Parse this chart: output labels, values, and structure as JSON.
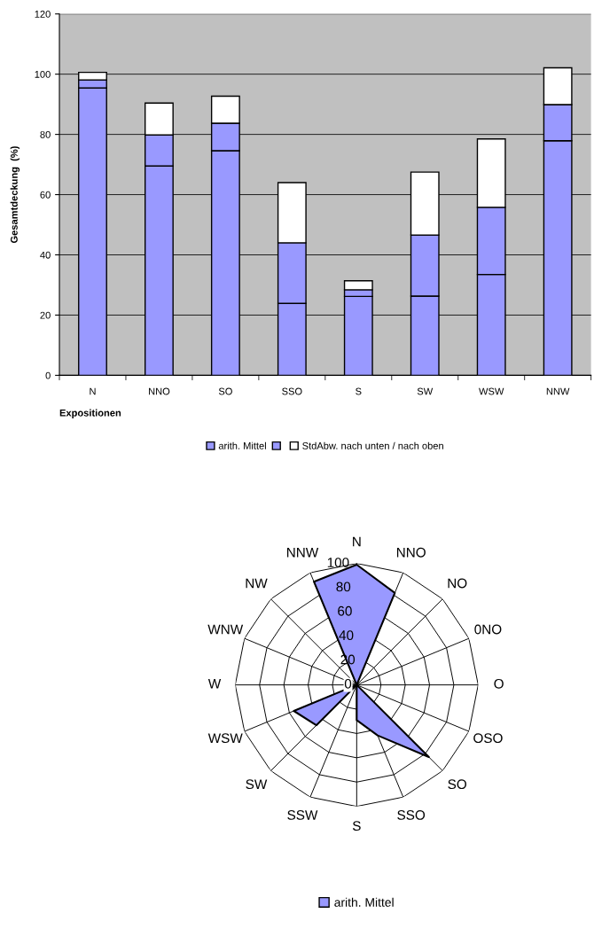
{
  "chart_data": [
    {
      "type": "bar",
      "stacked": true,
      "xlabel": "Expositionen",
      "ylabel": "Gesamtdeckung  (%)",
      "categories": [
        "N",
        "NNO",
        "SO",
        "SSO",
        "S",
        "SW",
        "WSW",
        "NNW"
      ],
      "series": [
        {
          "name": "arith. Mittel",
          "color": "#9999ff",
          "values": [
            95.4,
            69.5,
            74.6,
            23.9,
            26.2,
            26.3,
            33.5,
            77.9
          ]
        },
        {
          "name": null,
          "color": "#9999ff",
          "values": [
            2.7,
            10.3,
            9.1,
            20.1,
            2.2,
            20.3,
            22.3,
            12.0
          ]
        },
        {
          "name": "StdAbw. nach unten / nach oben",
          "color": "#ffffff",
          "values": [
            2.5,
            10.6,
            9.0,
            20.0,
            3.0,
            20.9,
            22.7,
            12.2
          ]
        }
      ],
      "ylim": [
        0,
        120
      ],
      "yticks": [
        0,
        20,
        40,
        60,
        80,
        100,
        120
      ],
      "grid": "y",
      "legend": "bottom"
    },
    {
      "type": "radar",
      "categories": [
        "N",
        "NNO",
        "NO",
        "0NO",
        "O",
        "OSO",
        "SO",
        "SSO",
        "S",
        "SSW",
        "SW",
        "WSW",
        "W",
        "WNW",
        "NW",
        "NNW"
      ],
      "series": [
        {
          "name": "arith. Mittel",
          "color": "#9999ff",
          "values": [
            99,
            82,
            0,
            0,
            0,
            0,
            84,
            45,
            29,
            0,
            47,
            56,
            0,
            0,
            0,
            92
          ]
        }
      ],
      "ylim": [
        0,
        100
      ],
      "yticks": [
        0,
        20,
        40,
        60,
        80,
        100
      ],
      "grid": true,
      "legend": "bottom"
    }
  ]
}
